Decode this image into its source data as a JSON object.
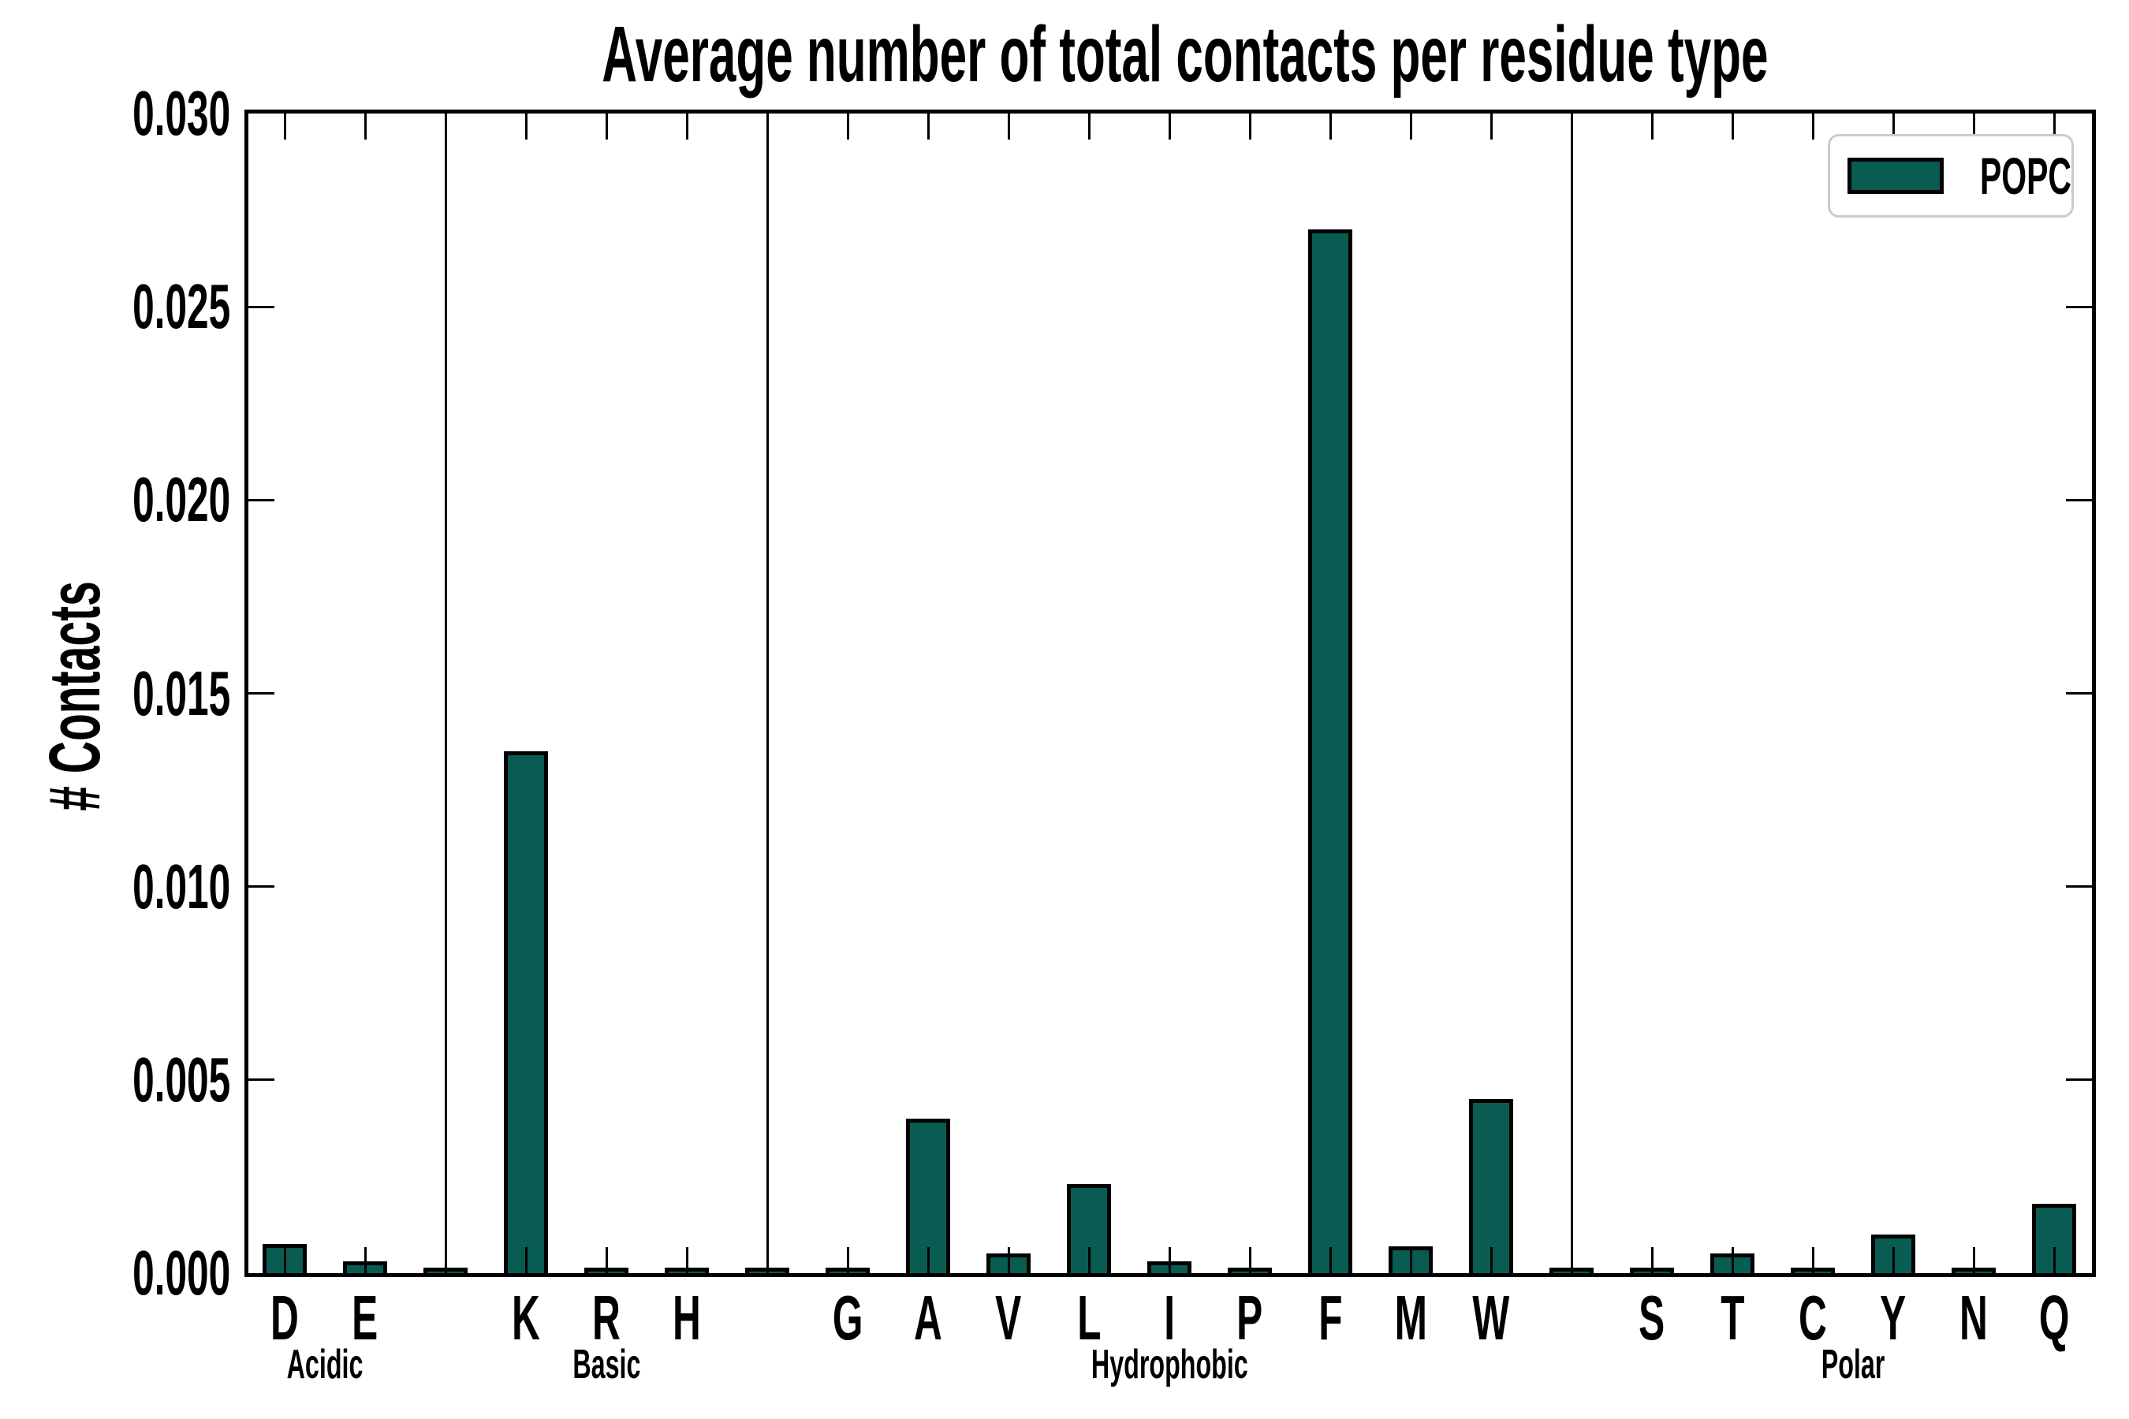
{
  "title": "Average number of total contacts per residue type",
  "ylabel": "# Contacts",
  "legend": {
    "label": "POPC",
    "position": "upper right",
    "swatch_color": "#085c52"
  },
  "colors": {
    "bar_fill": "#085c52",
    "bar_edge": "#000000",
    "axis": "#000000",
    "legend_border": "#cccccc",
    "background": "#ffffff"
  },
  "chart_data": {
    "type": "bar",
    "title": "Average number of total contacts per residue type",
    "xlabel": "",
    "ylabel": "# Contacts",
    "ylim": [
      0.0,
      0.03
    ],
    "yticks": [
      0.0,
      0.005,
      0.01,
      0.015,
      0.02,
      0.025,
      0.03
    ],
    "ytick_labels": [
      "0.000",
      "0.005",
      "0.010",
      "0.015",
      "0.020",
      "0.025",
      "0.030"
    ],
    "grid": false,
    "legend_entries": [
      "POPC"
    ],
    "legend_position": "upper right",
    "separator_bar_value": 5e-05,
    "groups": [
      {
        "label": "Acidic",
        "residues": [
          {
            "label": "D",
            "value": 0.00075
          },
          {
            "label": "E",
            "value": 0.0003
          }
        ]
      },
      {
        "label": "Basic",
        "residues": [
          {
            "label": "K",
            "value": 0.0135
          },
          {
            "label": "R",
            "value": 5e-05
          },
          {
            "label": "H",
            "value": 5e-05
          }
        ]
      },
      {
        "label": "Hydrophobic",
        "residues": [
          {
            "label": "G",
            "value": 5e-05
          },
          {
            "label": "A",
            "value": 0.004
          },
          {
            "label": "V",
            "value": 0.0005
          },
          {
            "label": "L",
            "value": 0.0023
          },
          {
            "label": "I",
            "value": 0.0003
          },
          {
            "label": "P",
            "value": 0.0001
          },
          {
            "label": "F",
            "value": 0.027
          },
          {
            "label": "M",
            "value": 0.0007
          },
          {
            "label": "W",
            "value": 0.0045
          }
        ]
      },
      {
        "label": "Polar",
        "residues": [
          {
            "label": "S",
            "value": 5e-05
          },
          {
            "label": "T",
            "value": 0.0005
          },
          {
            "label": "C",
            "value": 5e-05
          },
          {
            "label": "Y",
            "value": 0.001
          },
          {
            "label": "N",
            "value": 5e-05
          },
          {
            "label": "Q",
            "value": 0.0018
          }
        ]
      }
    ]
  }
}
